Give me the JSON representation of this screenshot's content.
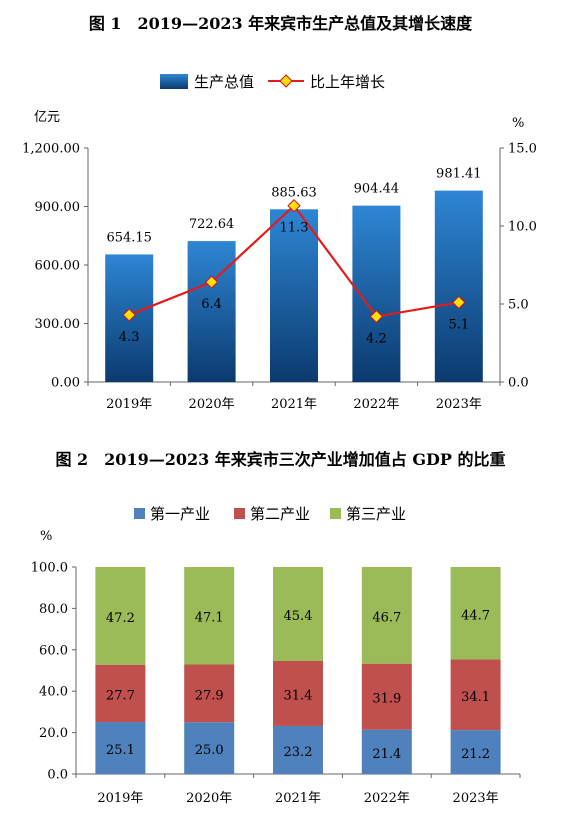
{
  "chart_data": [
    {
      "type": "bar",
      "title": "图 1　2019—2023 年来宾市生产总值及其增长速度",
      "categories": [
        "2019年",
        "2020年",
        "2021年",
        "2022年",
        "2023年"
      ],
      "series": [
        {
          "name": "生产总值",
          "values": [
            654.15,
            722.64,
            885.63,
            904.44,
            981.41
          ],
          "kind": "bar",
          "axis": "left",
          "labels": [
            "654.15",
            "722.64",
            "885.63",
            "904.44",
            "981.41"
          ]
        },
        {
          "name": "比上年增长",
          "values": [
            4.3,
            6.4,
            11.3,
            4.2,
            5.1
          ],
          "kind": "line",
          "axis": "right",
          "labels": [
            "4.3",
            "6.4",
            "11.3",
            "4.2",
            "5.1"
          ]
        }
      ],
      "y_left": {
        "unit": "亿元",
        "range": [
          0,
          1200
        ],
        "ticks": [
          "0.00",
          "300.00",
          "600.00",
          "900.00",
          "1,200.00"
        ],
        "tick_values": [
          0,
          300,
          600,
          900,
          1200
        ]
      },
      "y_right": {
        "unit": "%",
        "range": [
          0,
          15
        ],
        "ticks": [
          "0.0",
          "5.0",
          "10.0",
          "15.0"
        ],
        "tick_values": [
          0,
          5,
          10,
          15
        ]
      },
      "legend_position": "top",
      "colors": {
        "bar_top": "#2e86d4",
        "bar_bottom": "#0b3a6e",
        "line": "#e31b1b",
        "marker_fill": "#ffe000",
        "marker_stroke": "#c8102e"
      }
    },
    {
      "type": "bar",
      "stacked": true,
      "title": "图 2　2019—2023 年来宾市三次产业增加值占 GDP 的比重",
      "categories": [
        "2019年",
        "2020年",
        "2021年",
        "2022年",
        "2023年"
      ],
      "series": [
        {
          "name": "第一产业",
          "values": [
            25.1,
            25.0,
            23.2,
            21.4,
            21.2
          ],
          "labels": [
            "25.1",
            "25.0",
            "23.2",
            "21.4",
            "21.2"
          ],
          "color": "#4f81bd"
        },
        {
          "name": "第二产业",
          "values": [
            27.7,
            27.9,
            31.4,
            31.9,
            34.1
          ],
          "labels": [
            "27.7",
            "27.9",
            "31.4",
            "31.9",
            "34.1"
          ],
          "color": "#c0504d"
        },
        {
          "name": "第三产业",
          "values": [
            47.2,
            47.1,
            45.4,
            46.7,
            44.7
          ],
          "labels": [
            "47.2",
            "47.1",
            "45.4",
            "46.7",
            "44.7"
          ],
          "color": "#9bbb59"
        }
      ],
      "y": {
        "unit": "%",
        "range": [
          0,
          100
        ],
        "ticks": [
          "0.0",
          "20.0",
          "40.0",
          "60.0",
          "80.0",
          "100.0"
        ],
        "tick_values": [
          0,
          20,
          40,
          60,
          80,
          100
        ]
      },
      "legend_position": "top"
    }
  ]
}
